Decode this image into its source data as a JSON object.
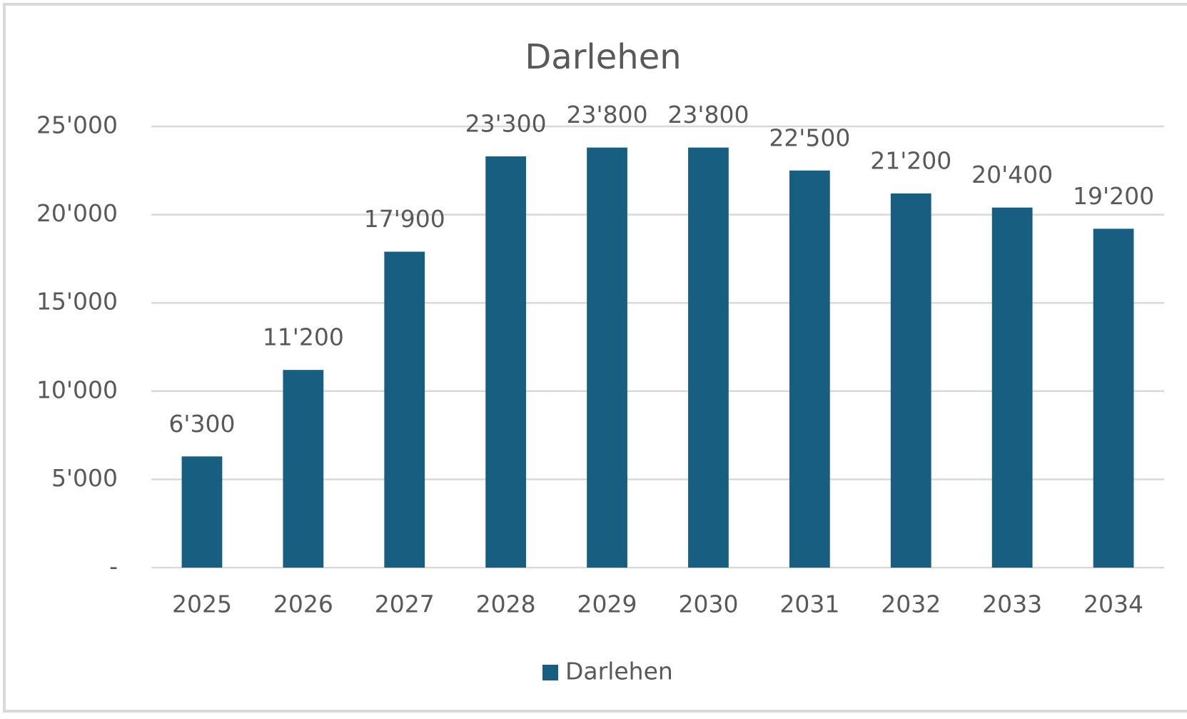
{
  "chart_data": {
    "type": "bar",
    "title": "Darlehen",
    "categories": [
      "2025",
      "2026",
      "2027",
      "2028",
      "2029",
      "2030",
      "2031",
      "2032",
      "2033",
      "2034"
    ],
    "series": [
      {
        "name": "Darlehen",
        "color": "#175e80",
        "values": [
          6300,
          11200,
          17900,
          23300,
          23800,
          23800,
          22500,
          21200,
          20400,
          19200
        ],
        "value_labels": [
          "6'300",
          "11'200",
          "17'900",
          "23'300",
          "23'800",
          "23'800",
          "22'500",
          "21'200",
          "20'400",
          "19'200"
        ]
      }
    ],
    "ylim": [
      0,
      25000
    ],
    "yticks": [
      {
        "value": 0,
        "label": "-"
      },
      {
        "value": 5000,
        "label": "5'000"
      },
      {
        "value": 10000,
        "label": "10'000"
      },
      {
        "value": 15000,
        "label": "15'000"
      },
      {
        "value": 20000,
        "label": "20'000"
      },
      {
        "value": 25000,
        "label": "25'000"
      }
    ],
    "grid": true,
    "legend": "bottom"
  }
}
